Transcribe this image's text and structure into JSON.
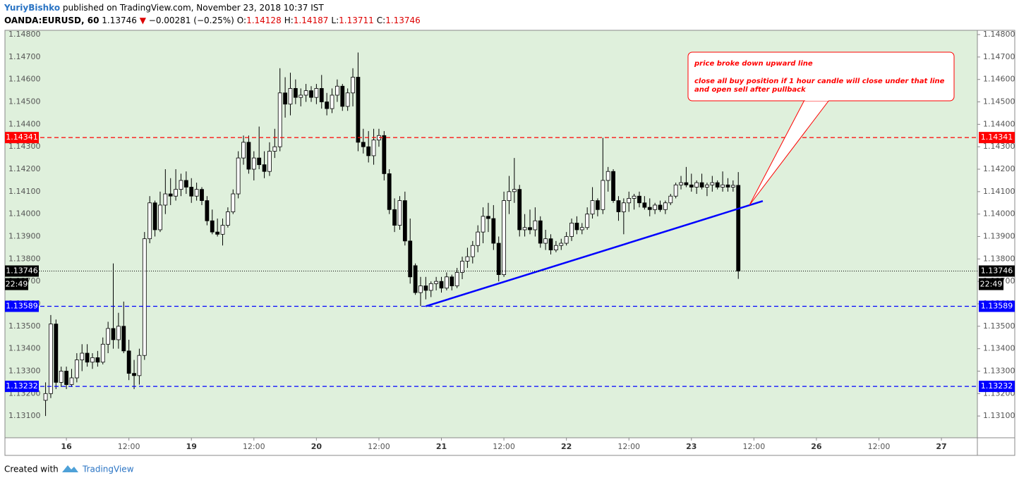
{
  "header": {
    "author": "YuriyBishko",
    "published": "published on TradingView.com, November 23, 2018 10:37 IST",
    "symbol": "OANDA:EURUSD, 60",
    "last": "1.13746",
    "change": "−0.00281 (−0.25%)",
    "ohlc": [
      {
        "label": "O:",
        "value": "1.14128"
      },
      {
        "label": "H:",
        "value": "1.14187"
      },
      {
        "label": "L:",
        "value": "1.13711"
      },
      {
        "label": "C:",
        "value": "1.13746"
      }
    ]
  },
  "chart_data": {
    "type": "candlestick",
    "x": [
      -4,
      -3,
      -2,
      -1,
      0,
      1,
      2,
      3,
      4,
      5,
      6,
      7,
      8,
      9,
      10,
      11,
      12,
      13,
      14,
      15,
      16,
      17,
      18,
      19,
      20,
      21,
      22,
      23,
      24,
      25,
      26,
      27,
      28,
      29,
      30,
      31,
      32,
      33,
      34,
      35,
      36,
      37,
      38,
      39,
      40,
      41,
      42,
      43,
      44,
      45,
      46,
      47,
      48,
      49,
      50,
      51,
      52,
      53,
      54,
      55,
      56,
      57,
      58,
      59,
      60,
      61,
      62,
      63,
      64,
      65,
      66,
      67,
      68,
      69,
      70,
      71,
      72,
      73,
      74,
      75,
      76,
      77,
      78,
      79,
      80,
      81,
      82,
      83,
      84,
      85,
      86,
      87,
      88,
      89,
      90,
      91,
      92,
      93,
      94,
      95,
      96,
      97,
      98,
      99,
      100,
      101,
      102,
      103,
      104,
      105,
      106,
      107,
      108,
      109,
      110,
      111,
      112,
      113,
      114,
      115,
      116,
      117,
      118,
      119,
      120,
      121,
      122,
      123,
      124,
      125,
      126,
      127,
      128,
      129
    ],
    "open": [
      1.1317,
      1.132,
      1.1351,
      1.1325,
      1.133,
      1.1324,
      1.1327,
      1.1335,
      1.1338,
      1.1334,
      1.1336,
      1.1334,
      1.1342,
      1.1349,
      1.1344,
      1.135,
      1.1339,
      1.1329,
      1.1328,
      1.1337,
      1.1389,
      1.1405,
      1.1393,
      1.1404,
      1.1409,
      1.1408,
      1.1411,
      1.1415,
      1.1412,
      1.1408,
      1.1411,
      1.1406,
      1.1397,
      1.1392,
      1.1391,
      1.1395,
      1.1401,
      1.1409,
      1.1425,
      1.1432,
      1.142,
      1.1425,
      1.1422,
      1.1419,
      1.1428,
      1.143,
      1.1454,
      1.1449,
      1.1456,
      1.1452,
      1.1453,
      1.1455,
      1.1452,
      1.1456,
      1.145,
      1.1447,
      1.1453,
      1.1457,
      1.1448,
      1.1454,
      1.1461,
      1.1432,
      1.143,
      1.1426,
      1.1433,
      1.1435,
      1.1418,
      1.1402,
      1.1395,
      1.1406,
      1.1388,
      1.1377,
      1.1365,
      1.1368,
      1.1366,
      1.1369,
      1.137,
      1.1367,
      1.1372,
      1.1368,
      1.1374,
      1.1379,
      1.1381,
      1.1386,
      1.1392,
      1.1399,
      1.1398,
      1.1387,
      1.1373,
      1.1406,
      1.141,
      1.1411,
      1.1393,
      1.1394,
      1.1393,
      1.1397,
      1.1387,
      1.1389,
      1.1384,
      1.1386,
      1.1387,
      1.139,
      1.1396,
      1.1393,
      1.1394,
      1.14,
      1.1406,
      1.1402,
      1.1415,
      1.1419,
      1.1406,
      1.1401,
      1.1405,
      1.1407,
      1.1408,
      1.1405,
      1.1403,
      1.1402,
      1.1404,
      1.1402,
      1.1405,
      1.1408,
      1.1413,
      1.1414,
      1.1413,
      1.1412,
      1.1414,
      1.1412,
      1.1413,
      1.1414,
      1.1412,
      1.1413,
      1.1412,
      1.14128
    ],
    "high": [
      1.1325,
      1.1355,
      1.1353,
      1.1332,
      1.1332,
      1.1331,
      1.1338,
      1.1342,
      1.1342,
      1.1338,
      1.1339,
      1.1345,
      1.1352,
      1.1378,
      1.1356,
      1.1361,
      1.1344,
      1.1335,
      1.134,
      1.1392,
      1.1408,
      1.1406,
      1.141,
      1.142,
      1.1416,
      1.142,
      1.1418,
      1.1419,
      1.1416,
      1.1414,
      1.1412,
      1.1408,
      1.1402,
      1.1398,
      1.1398,
      1.1403,
      1.1411,
      1.1428,
      1.1435,
      1.1435,
      1.1428,
      1.1439,
      1.1428,
      1.1432,
      1.1438,
      1.1465,
      1.1461,
      1.1463,
      1.146,
      1.1456,
      1.1458,
      1.1457,
      1.1458,
      1.1462,
      1.1454,
      1.1456,
      1.146,
      1.1458,
      1.1456,
      1.1465,
      1.1472,
      1.1438,
      1.1437,
      1.1438,
      1.1438,
      1.1437,
      1.142,
      1.1407,
      1.1408,
      1.141,
      1.1398,
      1.1378,
      1.1372,
      1.1372,
      1.137,
      1.1372,
      1.1372,
      1.1374,
      1.1373,
      1.1376,
      1.1381,
      1.1385,
      1.1388,
      1.1395,
      1.1403,
      1.1405,
      1.1404,
      1.139,
      1.141,
      1.1417,
      1.1425,
      1.1413,
      1.14,
      1.1402,
      1.1403,
      1.1399,
      1.1393,
      1.1391,
      1.1388,
      1.1389,
      1.1392,
      1.1398,
      1.1399,
      1.1396,
      1.1403,
      1.1412,
      1.1407,
      1.1434,
      1.1421,
      1.142,
      1.1408,
      1.1407,
      1.141,
      1.1409,
      1.141,
      1.1408,
      1.1407,
      1.1405,
      1.1406,
      1.1406,
      1.1409,
      1.1414,
      1.1417,
      1.1421,
      1.1418,
      1.1415,
      1.1418,
      1.1414,
      1.1417,
      1.1415,
      1.1419,
      1.1416,
      1.1415,
      1.14187
    ],
    "low": [
      1.131,
      1.1318,
      1.1322,
      1.1323,
      1.1322,
      1.1323,
      1.1325,
      1.133,
      1.1332,
      1.1331,
      1.1332,
      1.1333,
      1.1338,
      1.134,
      1.134,
      1.1338,
      1.1326,
      1.1322,
      1.1324,
      1.1335,
      1.1387,
      1.139,
      1.1392,
      1.14,
      1.1404,
      1.1406,
      1.1408,
      1.1409,
      1.1405,
      1.1406,
      1.1404,
      1.1395,
      1.1391,
      1.139,
      1.1386,
      1.1394,
      1.14,
      1.1407,
      1.1422,
      1.1418,
      1.1415,
      1.142,
      1.1416,
      1.1417,
      1.1425,
      1.1428,
      1.1443,
      1.1444,
      1.1449,
      1.1448,
      1.145,
      1.145,
      1.1449,
      1.1447,
      1.1444,
      1.1445,
      1.145,
      1.1446,
      1.1446,
      1.1448,
      1.1428,
      1.1427,
      1.1423,
      1.1422,
      1.143,
      1.1415,
      1.14,
      1.1392,
      1.1393,
      1.1386,
      1.1369,
      1.1364,
      1.1359,
      1.1362,
      1.1363,
      1.1366,
      1.1365,
      1.1366,
      1.1366,
      1.1367,
      1.1371,
      1.1376,
      1.1378,
      1.1383,
      1.1387,
      1.1392,
      1.1384,
      1.137,
      1.1372,
      1.14,
      1.1405,
      1.139,
      1.139,
      1.1391,
      1.139,
      1.1385,
      1.1384,
      1.1382,
      1.1383,
      1.1384,
      1.1386,
      1.1388,
      1.1391,
      1.1391,
      1.1393,
      1.1398,
      1.1399,
      1.14,
      1.141,
      1.1405,
      1.1397,
      1.1391,
      1.1401,
      1.1402,
      1.1403,
      1.1402,
      1.1399,
      1.14,
      1.1401,
      1.14,
      1.1404,
      1.1407,
      1.1411,
      1.1412,
      1.141,
      1.1409,
      1.1411,
      1.1408,
      1.141,
      1.1411,
      1.141,
      1.141,
      1.141,
      1.13711
    ],
    "close": [
      1.132,
      1.1351,
      1.1325,
      1.133,
      1.1324,
      1.1327,
      1.1335,
      1.1338,
      1.1334,
      1.1336,
      1.1334,
      1.1342,
      1.1349,
      1.1344,
      1.135,
      1.1339,
      1.1329,
      1.1328,
      1.1337,
      1.1389,
      1.1405,
      1.1393,
      1.1404,
      1.1409,
      1.1408,
      1.1411,
      1.1415,
      1.1412,
      1.1408,
      1.1411,
      1.1406,
      1.1397,
      1.1392,
      1.1391,
      1.1395,
      1.1401,
      1.1409,
      1.1425,
      1.1432,
      1.142,
      1.1425,
      1.1422,
      1.1419,
      1.1428,
      1.143,
      1.1454,
      1.1449,
      1.1456,
      1.1452,
      1.1453,
      1.1455,
      1.1452,
      1.1456,
      1.145,
      1.1447,
      1.1453,
      1.1457,
      1.1448,
      1.1454,
      1.1461,
      1.1432,
      1.143,
      1.1426,
      1.1433,
      1.1435,
      1.1418,
      1.1402,
      1.1395,
      1.1406,
      1.1388,
      1.1372,
      1.1365,
      1.1368,
      1.1366,
      1.1369,
      1.137,
      1.1367,
      1.1372,
      1.1368,
      1.1374,
      1.1379,
      1.1381,
      1.1386,
      1.1392,
      1.1399,
      1.1398,
      1.1387,
      1.1373,
      1.1406,
      1.141,
      1.1411,
      1.1393,
      1.1394,
      1.1393,
      1.1397,
      1.1387,
      1.1389,
      1.1384,
      1.1386,
      1.1387,
      1.139,
      1.1396,
      1.1393,
      1.1394,
      1.14,
      1.1406,
      1.1402,
      1.1415,
      1.1419,
      1.1406,
      1.1401,
      1.1405,
      1.1407,
      1.1408,
      1.1405,
      1.1403,
      1.1402,
      1.1404,
      1.1402,
      1.1405,
      1.1408,
      1.1413,
      1.1414,
      1.1413,
      1.1412,
      1.1414,
      1.1412,
      1.1413,
      1.1414,
      1.1412,
      1.1413,
      1.1412,
      1.14128,
      1.13746
    ],
    "xlim": [
      -11.8,
      174.9
    ],
    "xticks": [
      {
        "value": 0,
        "label": "16"
      },
      {
        "value": 12,
        "label": "12:00"
      },
      {
        "value": 24,
        "label": "19"
      },
      {
        "value": 36,
        "label": "12:00"
      },
      {
        "value": 48,
        "label": "20"
      },
      {
        "value": 60,
        "label": "12:00"
      },
      {
        "value": 72,
        "label": "21"
      },
      {
        "value": 84,
        "label": "12:00"
      },
      {
        "value": 96,
        "label": "22"
      },
      {
        "value": 108,
        "label": "12:00"
      },
      {
        "value": 120,
        "label": "23"
      },
      {
        "value": 132,
        "label": "12:00"
      },
      {
        "value": 144,
        "label": "26"
      },
      {
        "value": 156,
        "label": "12:00"
      },
      {
        "value": 168,
        "label": "27"
      }
    ],
    "ylim": [
      1.13003,
      1.14819
    ],
    "yticks": [
      {
        "value": 1.131,
        "label": "1.13100"
      },
      {
        "value": 1.132,
        "label": "1.13200"
      },
      {
        "value": 1.133,
        "label": "1.13300"
      },
      {
        "value": 1.134,
        "label": "1.13400"
      },
      {
        "value": 1.135,
        "label": "1.13500"
      },
      {
        "value": 1.136,
        "label": "1.13600"
      },
      {
        "value": 1.137,
        "label": "1.13700"
      },
      {
        "value": 1.138,
        "label": "1.13800"
      },
      {
        "value": 1.139,
        "label": "1.13900"
      },
      {
        "value": 1.14,
        "label": "1.14000"
      },
      {
        "value": 1.141,
        "label": "1.14100"
      },
      {
        "value": 1.142,
        "label": "1.14200"
      },
      {
        "value": 1.143,
        "label": "1.14300"
      },
      {
        "value": 1.144,
        "label": "1.14400"
      },
      {
        "value": 1.145,
        "label": "1.14500"
      },
      {
        "value": 1.146,
        "label": "1.14600"
      },
      {
        "value": 1.147,
        "label": "1.14700"
      },
      {
        "value": 1.148,
        "label": "1.14800"
      }
    ],
    "hlines": [
      {
        "value": 1.14341,
        "color": "#ff0000",
        "style": "dashed"
      },
      {
        "value": 1.13589,
        "color": "#0000ff",
        "style": "dashed"
      },
      {
        "value": 1.13232,
        "color": "#0000ff",
        "style": "dashed"
      },
      {
        "value": 1.13746,
        "color": "#000000",
        "style": "dotted"
      }
    ],
    "countdown": "22:49",
    "trendline": {
      "x": [
        69,
        133.7
      ],
      "y": [
        1.13589,
        1.14058
      ],
      "color": "#0000ff"
    },
    "annotation": [
      "price broke down upward line",
      "close all buy position if 1 hour candle will close under that line",
      "and open sell after pullback"
    ]
  },
  "footer": {
    "created": "Created with",
    "brand": "TradingView"
  }
}
